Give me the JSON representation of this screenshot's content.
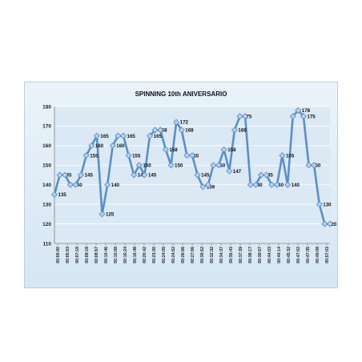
{
  "colors": {
    "line": "#5b8fc6",
    "marker": "#b9d2ec",
    "marker_stroke": "#5b8fc6",
    "plot_background": "#dbe9f5",
    "grid": "#ffffff"
  },
  "chart_data": {
    "type": "line",
    "title": "SPINNING 10th ANIVERSARIO",
    "xlabel": "",
    "ylabel": "",
    "ylim": [
      110,
      180
    ],
    "yticks": [
      110,
      120,
      130,
      140,
      150,
      160,
      170,
      180
    ],
    "grid": true,
    "legend": "none",
    "x_tick_labels": [
      "00:00:00",
      "00:05:53",
      "00:07:18",
      "00:08:18",
      "00:08:57",
      "00:10:46",
      "00:15:08",
      "00:16:24",
      "00:16:48",
      "00:20:42",
      "00:23:30",
      "00:24:05",
      "00:24:52",
      "00:26:56",
      "00:27:06",
      "00:30:52",
      "00:32:32",
      "00:34:37",
      "00:35:43",
      "00:37:39",
      "00:38:17",
      "00:39:57",
      "00:44:03",
      "00:44:14",
      "00:45:32",
      "00:47:02",
      "00:47:35",
      "00:49:08",
      "00:57:03"
    ],
    "values": [
      135,
      145,
      145,
      140,
      140,
      145,
      155,
      160,
      165,
      125,
      140,
      160,
      165,
      165,
      155,
      145,
      150,
      145,
      165,
      168,
      168,
      158,
      150,
      172,
      168,
      155,
      155,
      145,
      139,
      140,
      150,
      150,
      158,
      147,
      168,
      175,
      175,
      140,
      140,
      145,
      145,
      140,
      140,
      155,
      140,
      175,
      178,
      175,
      150,
      150,
      130,
      120,
      120
    ],
    "label_visible": [
      true,
      true,
      false,
      true,
      false,
      true,
      true,
      true,
      true,
      true,
      true,
      true,
      false,
      true,
      true,
      true,
      true,
      true,
      true,
      true,
      false,
      true,
      true,
      true,
      true,
      true,
      false,
      true,
      true,
      false,
      true,
      false,
      true,
      true,
      true,
      true,
      false,
      true,
      false,
      true,
      false,
      true,
      false,
      true,
      true,
      false,
      true,
      true,
      true,
      false,
      true,
      true,
      false
    ]
  }
}
